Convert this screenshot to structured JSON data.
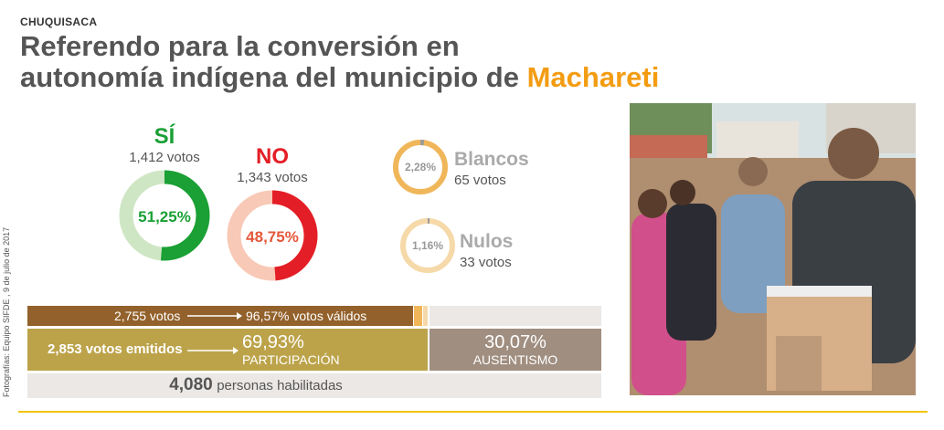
{
  "header": {
    "region": "CHUQUISACA",
    "title_line1": "Referendo para la conversión en",
    "title_line2": "autonomía indígena del municipio de ",
    "title_highlight": "Machareti"
  },
  "chart_data": {
    "type": "donut",
    "results": [
      {
        "label": "SÍ",
        "votes_text": "1,412 votos",
        "votes": 1412,
        "percent": 51.25,
        "percent_text": "51,25%",
        "color": "#1aa035",
        "track": "#cfe6c4"
      },
      {
        "label": "NO",
        "votes_text": "1,343 votos",
        "votes": 1343,
        "percent": 48.75,
        "percent_text": "48,75%",
        "color": "#e41e26",
        "track": "#f8c9b6"
      },
      {
        "label": "Blancos",
        "votes_text": "65 votos",
        "votes": 65,
        "percent": 2.28,
        "percent_text": "2,28%",
        "color": "#9a9a9a",
        "track": "#f0b65a"
      },
      {
        "label": "Nulos",
        "votes_text": "33 votos",
        "votes": 33,
        "percent": 1.16,
        "percent_text": "1,16%",
        "color": "#9a9a9a",
        "track": "#f6d9a8"
      }
    ]
  },
  "summary": {
    "valid_votes": "2,755 votos",
    "valid_pct": "96,57% votos válidos",
    "emitted_votes": "2,853 votos emitidos",
    "participation_pct": "69,93%",
    "participation_label": "PARTICIPACIÓN",
    "absent_pct": "30,07%",
    "absent_label": "AUSENTISMO",
    "enabled_num": "4,080",
    "enabled_label": "personas habilitadas",
    "participation_value": 69.93
  },
  "credit": "Fotografías: Equipo SIFDE , 9 de julio de 2017",
  "colors": {
    "valid_bar": "#93612b",
    "participation_bar": "#bca34a",
    "absent_bar": "#a08e80",
    "enabled_bar": "#ebe8e6",
    "accent": "#f39c12"
  },
  "photo": {
    "alt": "Votante depositando su voto en el ánfora"
  }
}
